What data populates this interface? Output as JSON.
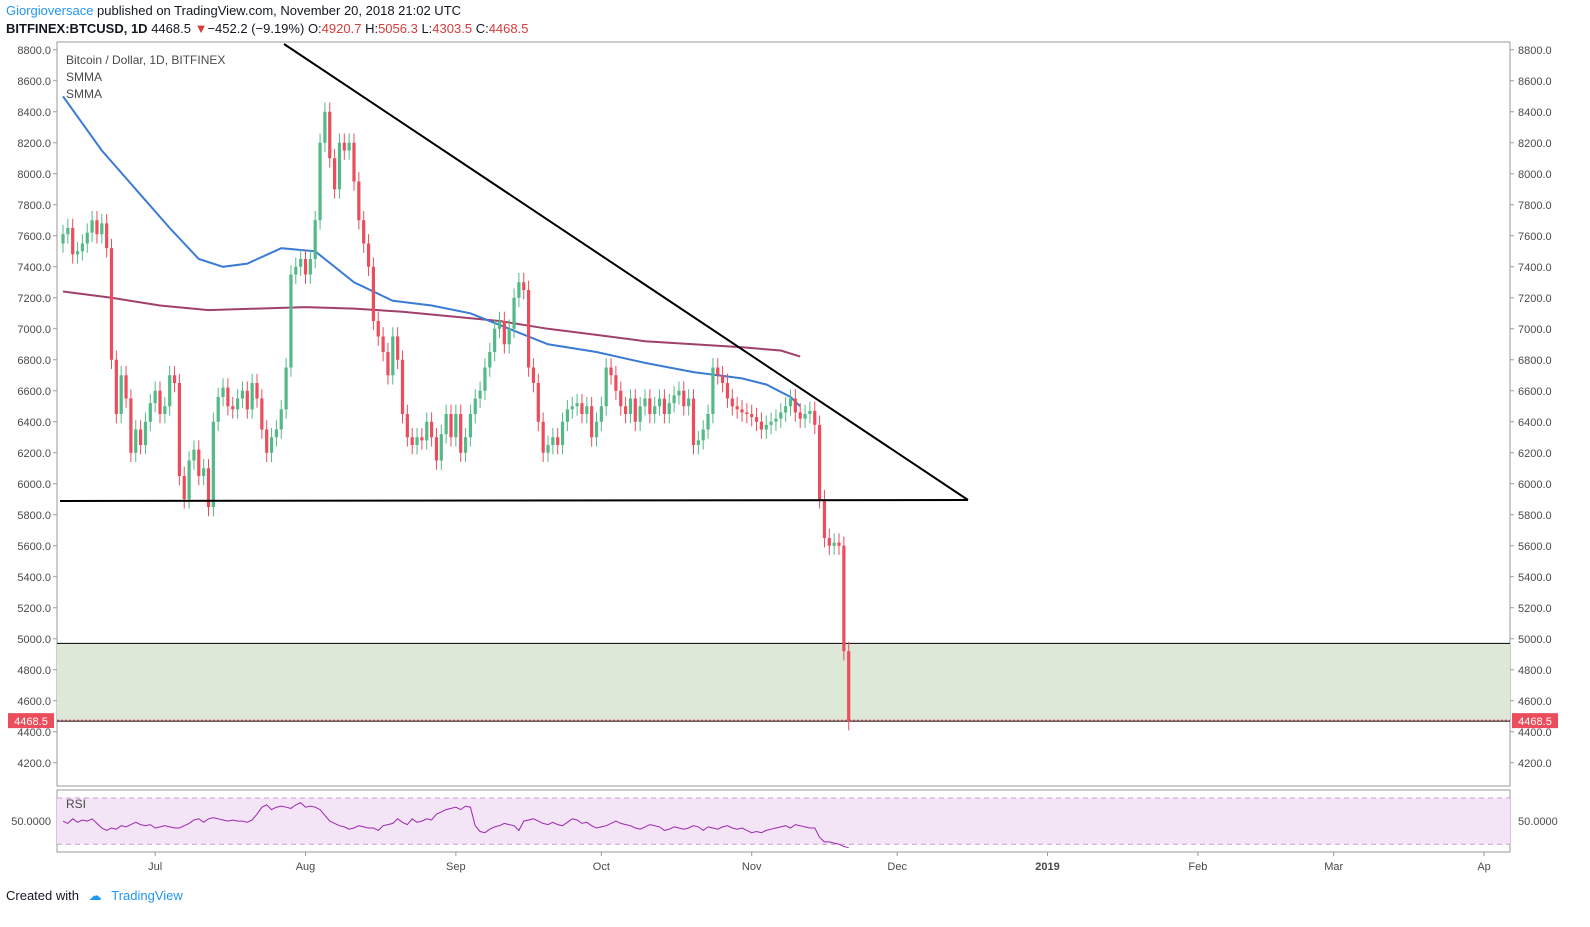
{
  "header": {
    "author": "Giorgioversace",
    "published_text": " published on TradingView.com, November 20, 2018 21:02 UTC",
    "symbol": "BITFINEX:BTCUSD, 1D",
    "last": "4468.5",
    "change_arrow": "▼",
    "change": "−452.2 (−9.19%)",
    "o_label": "O:",
    "o_value": "4920.7",
    "h_label": "H:",
    "h_value": "5056.3",
    "l_label": "L:",
    "l_value": "4303.5",
    "c_label": "C:",
    "c_value": "4468.5"
  },
  "footer": {
    "created_with": "Created with",
    "brand": "TradingView"
  },
  "colors": {
    "up": "#53b987",
    "down": "#eb4d5c",
    "smma_fast": "#3a7bd5",
    "smma_slow": "#a0406b",
    "rsi": "#9c27b0",
    "zone": "#dde8d9"
  },
  "chart_data": {
    "type": "candlestick",
    "title": "Bitcoin / Dollar, 1D, BITFINEX",
    "legend": [
      "SMMA",
      "SMMA"
    ],
    "ylim": [
      4050,
      8850
    ],
    "y_ticks": [
      "8800.0",
      "8600.0",
      "8400.0",
      "8200.0",
      "8000.0",
      "7800.0",
      "7600.0",
      "7400.0",
      "7200.0",
      "7000.0",
      "6800.0",
      "6600.0",
      "6400.0",
      "6200.0",
      "6000.0",
      "5800.0",
      "5600.0",
      "5400.0",
      "5200.0",
      "5000.0",
      "4800.0",
      "4600.0",
      "4400.0",
      "4200.0"
    ],
    "x_ticks": [
      "Jul",
      "Aug",
      "Sep",
      "Oct",
      "Nov",
      "Dec",
      "2019",
      "Feb",
      "Mar",
      "Ap"
    ],
    "x_tick_days": [
      19,
      50,
      81,
      111,
      142,
      172,
      203,
      234,
      262,
      293
    ],
    "last_price_label": "4468.5",
    "close": [
      7610,
      7650,
      7480,
      7500,
      7550,
      7620,
      7700,
      7610,
      7680,
      7520,
      6800,
      6450,
      6700,
      6550,
      6200,
      6350,
      6250,
      6400,
      6520,
      6600,
      6450,
      6500,
      6700,
      6650,
      6050,
      5900,
      6150,
      6220,
      6050,
      6100,
      5850,
      6400,
      6560,
      6620,
      6500,
      6480,
      6550,
      6600,
      6480,
      6650,
      6550,
      6350,
      6200,
      6300,
      6350,
      6480,
      6750,
      7350,
      7400,
      7450,
      7350,
      7450,
      7700,
      8200,
      8400,
      8100,
      7900,
      8200,
      8150,
      8200,
      7950,
      7700,
      7550,
      7400,
      7050,
      6950,
      6850,
      6700,
      6950,
      6800,
      6450,
      6300,
      6250,
      6300,
      6280,
      6400,
      6300,
      6150,
      6320,
      6450,
      6300,
      6450,
      6200,
      6300,
      6450,
      6550,
      6600,
      6750,
      6850,
      7000,
      7050,
      6900,
      7000,
      7200,
      7300,
      7250,
      6750,
      6650,
      6400,
      6200,
      6250,
      6300,
      6250,
      6400,
      6480,
      6500,
      6520,
      6450,
      6500,
      6300,
      6400,
      6500,
      6750,
      6700,
      6600,
      6500,
      6450,
      6550,
      6400,
      6500,
      6550,
      6450,
      6500,
      6550,
      6450,
      6520,
      6570,
      6600,
      6500,
      6550,
      6250,
      6280,
      6350,
      6450,
      6750,
      6700,
      6650,
      6550,
      6500,
      6480,
      6460,
      6450,
      6430,
      6400,
      6350,
      6380,
      6400,
      6420,
      6460,
      6500,
      6550,
      6460,
      6420,
      6450,
      6470,
      6380,
      5900,
      5650,
      5600,
      5620,
      5600,
      4920,
      4468.5
    ],
    "smma_fast": [
      [
        0,
        8500
      ],
      [
        8,
        8150
      ],
      [
        15,
        7900
      ],
      [
        22,
        7650
      ],
      [
        28,
        7450
      ],
      [
        33,
        7400
      ],
      [
        38,
        7420
      ],
      [
        45,
        7520
      ],
      [
        52,
        7500
      ],
      [
        60,
        7300
      ],
      [
        68,
        7180
      ],
      [
        76,
        7150
      ],
      [
        84,
        7100
      ],
      [
        92,
        7000
      ],
      [
        100,
        6900
      ],
      [
        110,
        6850
      ],
      [
        120,
        6780
      ],
      [
        130,
        6720
      ],
      [
        140,
        6680
      ],
      [
        145,
        6640
      ],
      [
        150,
        6560
      ],
      [
        152,
        6500
      ]
    ],
    "smma_slow": [
      [
        0,
        7240
      ],
      [
        10,
        7200
      ],
      [
        20,
        7150
      ],
      [
        30,
        7120
      ],
      [
        40,
        7130
      ],
      [
        50,
        7140
      ],
      [
        60,
        7130
      ],
      [
        70,
        7110
      ],
      [
        80,
        7080
      ],
      [
        90,
        7050
      ],
      [
        100,
        7000
      ],
      [
        110,
        6960
      ],
      [
        120,
        6920
      ],
      [
        130,
        6900
      ],
      [
        140,
        6880
      ],
      [
        148,
        6860
      ],
      [
        152,
        6820
      ]
    ],
    "rsi": {
      "label": "RSI",
      "y_tick": "50.0000",
      "values": [
        50,
        48,
        52,
        49,
        51,
        50,
        52,
        48,
        44,
        42,
        44,
        43,
        46,
        45,
        47,
        49,
        47,
        46,
        47,
        44,
        45,
        46,
        45,
        44,
        44,
        46,
        48,
        51,
        52,
        49,
        52,
        53,
        52,
        51,
        50,
        51,
        50,
        50,
        49,
        51,
        56,
        62,
        64,
        60,
        62,
        63,
        62,
        61,
        64,
        66,
        62,
        63,
        62,
        60,
        55,
        50,
        48,
        46,
        45,
        43,
        44,
        46,
        45,
        44,
        44,
        42,
        46,
        47,
        48,
        52,
        49,
        47,
        52,
        49,
        50,
        52,
        51,
        56,
        58,
        60,
        61,
        62,
        60,
        63,
        62,
        46,
        41,
        40,
        43,
        45,
        46,
        48,
        47,
        46,
        42,
        50,
        51,
        52,
        50,
        48,
        47,
        49,
        47,
        46,
        49,
        52,
        51,
        48,
        49,
        46,
        44,
        45,
        46,
        48,
        50,
        48,
        47,
        46,
        44,
        43,
        45,
        47,
        46,
        45,
        42,
        43,
        45,
        44,
        43,
        44,
        46,
        45,
        42,
        45,
        44,
        43,
        45,
        46,
        44,
        43,
        44,
        42,
        40,
        41,
        40,
        42,
        43,
        44,
        45,
        46,
        44,
        47,
        46,
        45,
        44,
        44,
        36,
        32,
        32,
        31,
        30,
        28,
        27
      ]
    }
  }
}
